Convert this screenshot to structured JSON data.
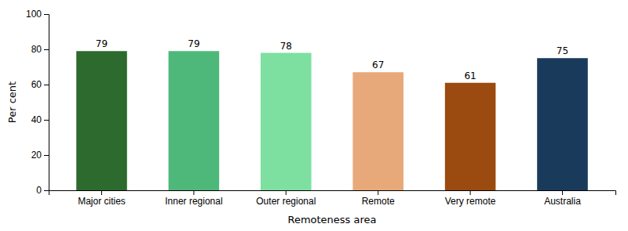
{
  "chart_data": {
    "type": "bar",
    "categories": [
      "Major cities",
      "Inner regional",
      "Outer regional",
      "Remote",
      "Very remote",
      "Australia"
    ],
    "values": [
      79,
      79,
      78,
      67,
      61,
      75
    ],
    "colors": [
      "#2d6a2d",
      "#4db87a",
      "#7de0a0",
      "#e8a97a",
      "#9b4a10",
      "#1a3a5c"
    ],
    "ylabel": "Per cent",
    "xlabel": "Remoteness area",
    "ylim": [
      0,
      100
    ],
    "yticks": [
      0,
      20,
      40,
      60,
      80,
      100
    ],
    "data_labels": true,
    "grid": false
  }
}
